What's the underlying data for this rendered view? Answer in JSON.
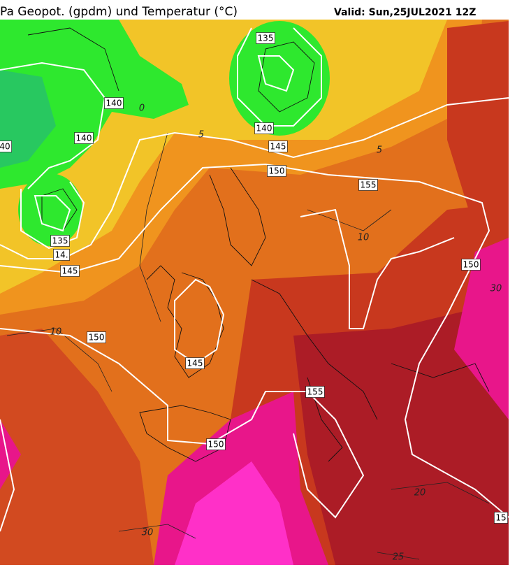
{
  "header": {
    "title": "Pa Geopot. (gpdm) und Temperatur (°C)",
    "valid": "Valid: Sun,25JUL2021 12Z"
  },
  "isohypse_labels": [
    135,
    140,
    140,
    40,
    140,
    145,
    150,
    155,
    135,
    "14.",
    145,
    150,
    145,
    155,
    150,
    150,
    15
  ],
  "isotherm_labels": [
    0,
    5,
    5,
    10,
    10,
    20,
    30,
    30,
    25
  ]
}
